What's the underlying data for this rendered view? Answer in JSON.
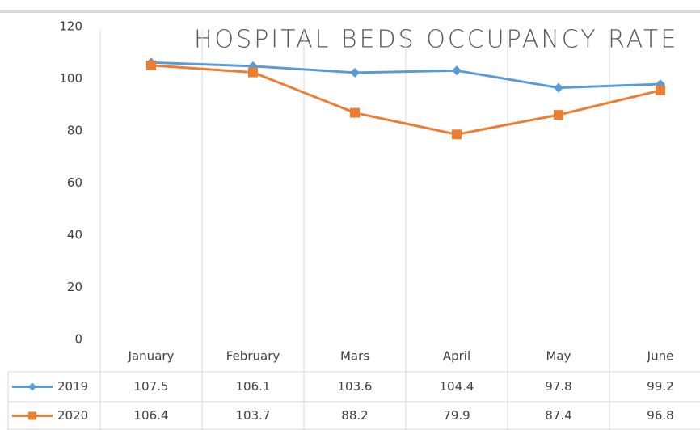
{
  "chart_data": {
    "type": "line",
    "title": "HOSPITAL BEDS OCCUPANCY RATE",
    "categories": [
      "January",
      "February",
      "Mars",
      "April",
      "May",
      "June"
    ],
    "series": [
      {
        "name": "2019",
        "color": "#5b9bd5",
        "marker": "diamond",
        "values": [
          107.5,
          106.1,
          103.6,
          104.4,
          97.8,
          99.2
        ]
      },
      {
        "name": "2020",
        "color": "#ed7d31",
        "marker": "square",
        "values": [
          106.4,
          103.7,
          88.2,
          79.9,
          87.4,
          96.8
        ]
      }
    ],
    "ylim": [
      0,
      120
    ],
    "yticks": [
      0,
      20,
      40,
      60,
      80,
      100,
      120
    ]
  }
}
